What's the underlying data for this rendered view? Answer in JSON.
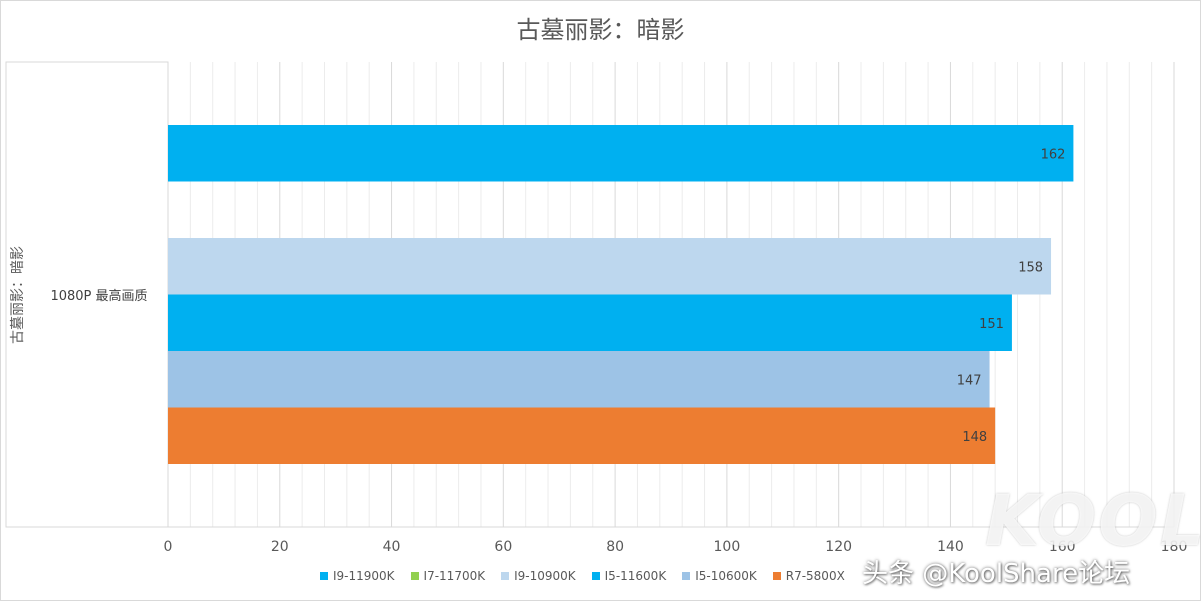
{
  "chart_data": {
    "type": "bar",
    "orientation": "horizontal",
    "title": "古墓丽影：暗影",
    "ylabel_outer": "古墓丽影：暗影",
    "category": "1080P 最高画质",
    "xlim": [
      0,
      180
    ],
    "xticks": [
      0,
      20,
      40,
      60,
      80,
      100,
      120,
      140,
      160,
      180
    ],
    "grid": true,
    "legend_position": "bottom",
    "series": [
      {
        "name": "I9-11900K",
        "value": 162,
        "color": "#00B0F0"
      },
      {
        "name": "I7-11700K",
        "value": null,
        "color": "#92D050"
      },
      {
        "name": "I9-10900K",
        "value": 158,
        "color": "#BDD7EE"
      },
      {
        "name": "I5-11600K",
        "value": 151,
        "color": "#00B0F0"
      },
      {
        "name": "I5-10600K",
        "value": 147,
        "color": "#9DC3E6"
      },
      {
        "name": "R7-5800X",
        "value": 148,
        "color": "#ED7D31"
      }
    ]
  },
  "watermark": {
    "text": "头条 @KoolShare论坛",
    "logo": "KOOL"
  }
}
